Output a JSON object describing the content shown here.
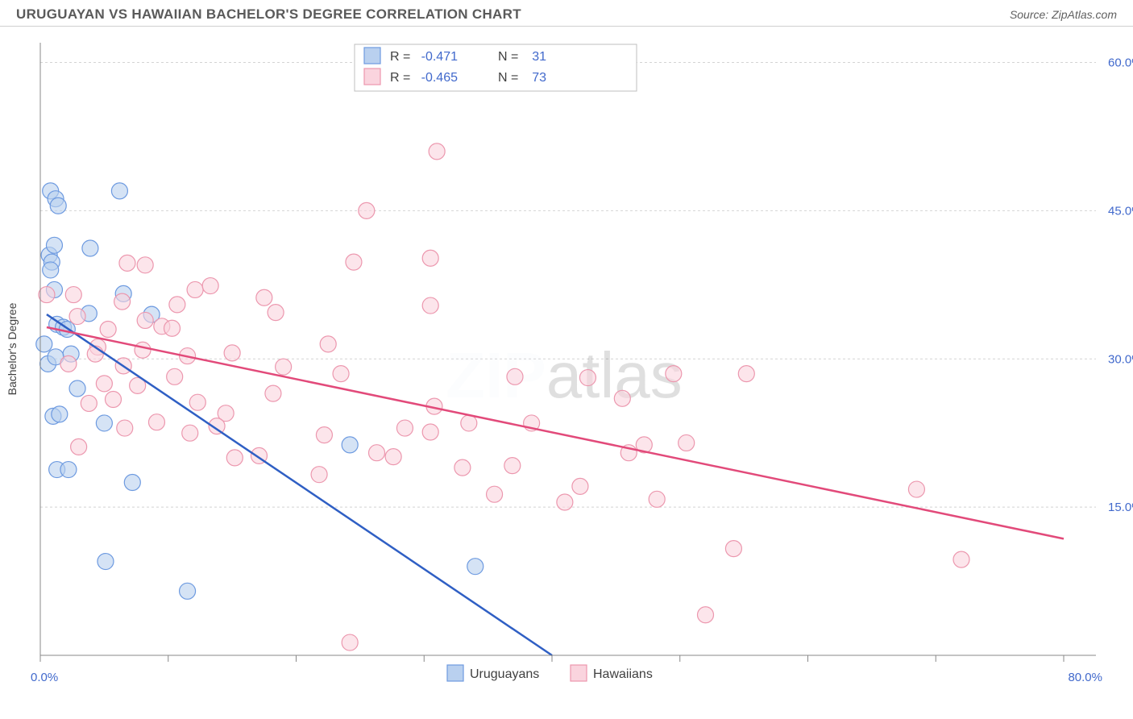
{
  "header": {
    "title": "URUGUAYAN VS HAWAIIAN BACHELOR'S DEGREE CORRELATION CHART",
    "source": "Source: ZipAtlas.com"
  },
  "watermark": {
    "bold": "ZIP",
    "light": "atlas"
  },
  "chart": {
    "type": "scatter",
    "y_axis_label": "Bachelor's Degree",
    "background_color": "#ffffff",
    "grid_color": "#d4d4d4",
    "axis_color": "#888888",
    "tick_label_color": "#4169cc",
    "xlim": [
      0,
      80
    ],
    "ylim": [
      0,
      62
    ],
    "x_ticks": [
      0,
      10,
      20,
      30,
      40,
      50,
      60,
      70,
      80
    ],
    "x_tick_labels": {
      "0": "0.0%",
      "80": "80.0%"
    },
    "y_ticks": [
      15,
      30,
      45,
      60
    ],
    "y_tick_labels": {
      "15": "15.0%",
      "30": "30.0%",
      "45": "45.0%",
      "60": "60.0%"
    },
    "marker_radius": 10,
    "marker_opacity": 0.6,
    "series": [
      {
        "name": "Uruguayans",
        "color_stroke": "#6d9ae0",
        "color_fill": "#b9d0ef",
        "line_color": "#2f5fc4",
        "line_width": 2.5,
        "R": "-0.471",
        "N": "31",
        "trend": {
          "x1": 0.5,
          "y1": 34.5,
          "x2": 40,
          "y2": 0
        },
        "points": [
          [
            0.8,
            47
          ],
          [
            1.2,
            46.2
          ],
          [
            1.4,
            45.5
          ],
          [
            6.2,
            47
          ],
          [
            3.9,
            41.2
          ],
          [
            0.7,
            40.5
          ],
          [
            0.9,
            39.8
          ],
          [
            0.8,
            39
          ],
          [
            1.1,
            37
          ],
          [
            0.6,
            29.5
          ],
          [
            1.3,
            33.5
          ],
          [
            1.8,
            33.2
          ],
          [
            2.1,
            33
          ],
          [
            2.4,
            30.5
          ],
          [
            1.2,
            30.2
          ],
          [
            3.8,
            34.6
          ],
          [
            6.5,
            36.6
          ],
          [
            8.7,
            34.5
          ],
          [
            1,
            24.2
          ],
          [
            1.5,
            24.4
          ],
          [
            1.3,
            18.8
          ],
          [
            2.2,
            18.8
          ],
          [
            7.2,
            17.5
          ],
          [
            5.1,
            9.5
          ],
          [
            11.5,
            6.5
          ],
          [
            24.2,
            21.3
          ],
          [
            34,
            9
          ],
          [
            0.3,
            31.5
          ],
          [
            2.9,
            27
          ],
          [
            5,
            23.5
          ],
          [
            1.1,
            41.5
          ]
        ]
      },
      {
        "name": "Hawaiians",
        "color_stroke": "#ec97ae",
        "color_fill": "#fad4de",
        "line_color": "#e24a7a",
        "line_width": 2.5,
        "R": "-0.465",
        "N": "73",
        "trend": {
          "x1": 0.5,
          "y1": 33.2,
          "x2": 80,
          "y2": 11.8
        },
        "points": [
          [
            31,
            51
          ],
          [
            25.5,
            45
          ],
          [
            6.8,
            39.7
          ],
          [
            8.2,
            39.5
          ],
          [
            12.1,
            37
          ],
          [
            24.5,
            39.8
          ],
          [
            30.5,
            40.2
          ],
          [
            2.6,
            36.5
          ],
          [
            5.3,
            33
          ],
          [
            6.4,
            35.8
          ],
          [
            8,
            30.9
          ],
          [
            9.5,
            33.3
          ],
          [
            10.3,
            33.1
          ],
          [
            11.5,
            30.3
          ],
          [
            17.5,
            36.2
          ],
          [
            18.4,
            34.7
          ],
          [
            22.5,
            31.5
          ],
          [
            19,
            29.2
          ],
          [
            23.5,
            28.5
          ],
          [
            14.5,
            24.5
          ],
          [
            10.5,
            28.2
          ],
          [
            5,
            27.5
          ],
          [
            3.8,
            25.5
          ],
          [
            6.6,
            23
          ],
          [
            11.7,
            22.5
          ],
          [
            13.8,
            23.2
          ],
          [
            15.2,
            20
          ],
          [
            17.1,
            20.2
          ],
          [
            22.2,
            22.3
          ],
          [
            21.8,
            18.3
          ],
          [
            24.2,
            1.3
          ],
          [
            26.3,
            20.5
          ],
          [
            27.6,
            20.1
          ],
          [
            28.5,
            23
          ],
          [
            30.5,
            22.6
          ],
          [
            33,
            19
          ],
          [
            33.5,
            23.5
          ],
          [
            36.9,
            19.2
          ],
          [
            37.1,
            28.2
          ],
          [
            38.4,
            23.5
          ],
          [
            42.2,
            17.1
          ],
          [
            42.8,
            28.1
          ],
          [
            45.5,
            26
          ],
          [
            47.2,
            21.3
          ],
          [
            48.2,
            15.8
          ],
          [
            50.5,
            21.5
          ],
          [
            52,
            4.1
          ],
          [
            55.2,
            28.5
          ],
          [
            54.2,
            10.8
          ],
          [
            68.5,
            16.8
          ],
          [
            72,
            9.7
          ],
          [
            3,
            21.1
          ],
          [
            2.2,
            29.5
          ],
          [
            0.5,
            36.5
          ],
          [
            4.5,
            31.2
          ],
          [
            6.5,
            29.3
          ],
          [
            8.2,
            33.9
          ],
          [
            10.7,
            35.5
          ],
          [
            15,
            30.6
          ],
          [
            49.5,
            28.5
          ],
          [
            46,
            20.5
          ],
          [
            41,
            15.5
          ],
          [
            35.5,
            16.3
          ],
          [
            30.8,
            25.2
          ],
          [
            30.5,
            35.4
          ],
          [
            13.3,
            37.4
          ],
          [
            2.9,
            34.3
          ],
          [
            4.3,
            30.5
          ],
          [
            5.7,
            25.9
          ],
          [
            7.6,
            27.3
          ],
          [
            9.1,
            23.6
          ],
          [
            12.3,
            25.6
          ],
          [
            18.2,
            26.5
          ]
        ]
      }
    ],
    "legend_stats": {
      "R_label": "R =",
      "N_label": "N ="
    },
    "bottom_legend": {
      "items": [
        "Uruguayans",
        "Hawaiians"
      ]
    }
  }
}
